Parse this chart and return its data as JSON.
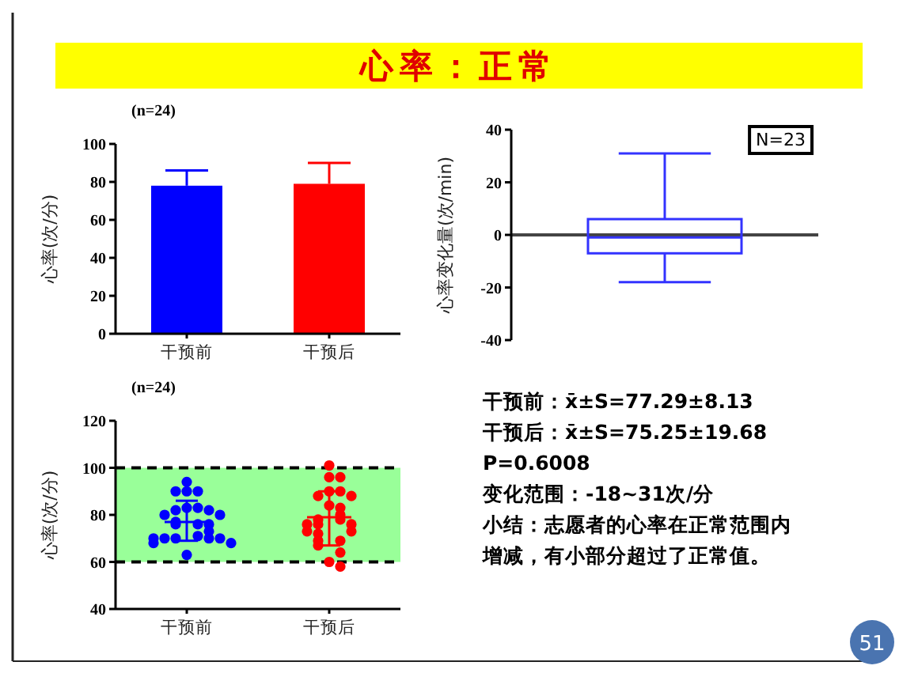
{
  "chart_data": [
    {
      "type": "bar",
      "subtitle": "(n=24)",
      "ylabel": "心率(次/分)",
      "categories": [
        "干预前",
        "干预后"
      ],
      "values": [
        78,
        79
      ],
      "colors": [
        "#0000ff",
        "#ff0000"
      ],
      "errors": [
        [
          78,
          86
        ],
        [
          79,
          90
        ]
      ],
      "ylim": [
        0,
        100
      ],
      "yticks": [
        0,
        20,
        40,
        60,
        80,
        100
      ]
    },
    {
      "type": "box",
      "ylabel": "心率变化量(次/min)",
      "categories": [
        null
      ],
      "color": "#3333ff",
      "boxes": [
        {
          "low": -18,
          "q1": -7,
          "median": -1,
          "q3": 6,
          "high": 31
        }
      ],
      "ylim": [
        -40,
        40
      ],
      "yticks": [
        -40,
        -20,
        0,
        20,
        40
      ],
      "tick_labels": "y",
      "ref_lines": [
        {
          "axis": "y",
          "value": 0,
          "color": "#444444"
        }
      ],
      "annotations": [
        "N=23"
      ]
    },
    {
      "type": "scatter",
      "subtitle": "(n=24)",
      "ylabel": "心率(次/分)",
      "categories": [
        "干预前",
        "干预后"
      ],
      "ylim": [
        40,
        120
      ],
      "yticks": [
        40,
        60,
        80,
        100,
        120
      ],
      "marker": "circle",
      "bands": [
        {
          "axis": "y",
          "from": 60,
          "to": 100,
          "color": "#99ff99"
        }
      ],
      "ref_lines": [
        {
          "axis": "y",
          "value": 60,
          "color": "#000000",
          "line_style": "dashed"
        },
        {
          "axis": "y",
          "value": 100,
          "color": "#000000",
          "line_style": "dashed"
        }
      ],
      "series": [
        {
          "color": "#0000ff",
          "x": [
            "干预前",
            "干预前",
            "干预前",
            "干预前",
            "干预前",
            "干预前",
            "干预前",
            "干预前",
            "干预前",
            "干预前",
            "干预前",
            "干预前",
            "干预前",
            "干预前",
            "干预前",
            "干预前",
            "干预前",
            "干预前",
            "干预前",
            "干预前",
            "干预前",
            "干预前",
            "干预前",
            "干预前"
          ],
          "values": [
            94,
            90,
            90,
            90,
            83,
            83,
            82,
            82,
            80,
            80,
            77,
            76,
            76,
            76,
            73,
            71,
            70,
            70,
            70,
            70,
            70,
            68,
            68,
            63
          ]
        },
        {
          "color": "#ff0000",
          "x": [
            "干预后",
            "干预后",
            "干预后",
            "干预后",
            "干预后",
            "干预后",
            "干预后",
            "干预后",
            "干预后",
            "干预后",
            "干预后",
            "干预后",
            "干预后",
            "干预后",
            "干预后",
            "干预后",
            "干预后",
            "干预后",
            "干预后",
            "干预后",
            "干预后",
            "干预后",
            "干预后",
            "干预后"
          ],
          "values": [
            101,
            96,
            96,
            90,
            90,
            88,
            88,
            84,
            83,
            80,
            78,
            78,
            76,
            76,
            76,
            73,
            73,
            72,
            69,
            69,
            67,
            64,
            60,
            58
          ]
        },
        {
          "type": "box",
          "colors": [
            "#0000ff",
            "#ff0000"
          ],
          "boxes": [
            {
              "low": 69,
              "q1": 77,
              "median": 77,
              "q3": 77,
              "high": 86
            },
            {
              "low": 67,
              "q1": 79,
              "median": 79,
              "q3": 79,
              "high": 90
            }
          ]
        }
      ]
    },
    {
      "type": "other",
      "title": "心率：正常",
      "annotations": [
        "干预前：x̄±S=77.29±8.13",
        "干预后：x̄±S=75.25±19.68",
        "P=0.6008",
        "变化范围：-18~31次/分",
        "小结：志愿者的心率在正常范围内",
        "增减，有小部分超过了正常值。",
        "51"
      ]
    }
  ]
}
